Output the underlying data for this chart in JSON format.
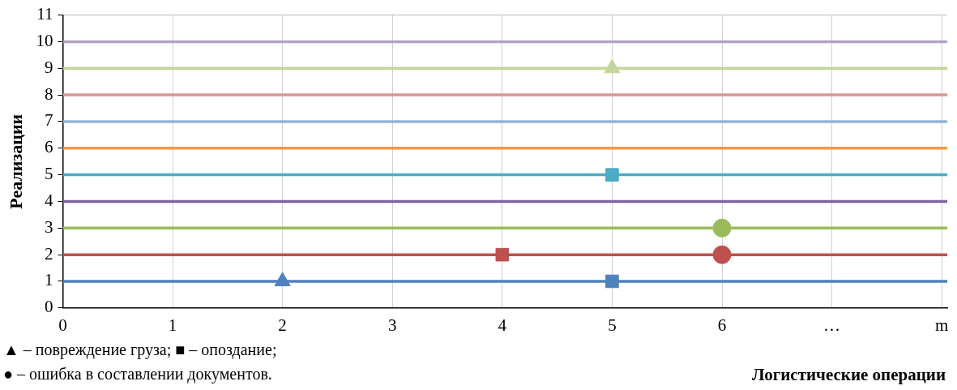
{
  "chart_data": {
    "type": "line",
    "ylabel": "Реализации",
    "xlabel": "Логистические операции",
    "xlim": [
      0,
      8.05
    ],
    "ylim": [
      0,
      11
    ],
    "xticks": [
      0,
      1,
      2,
      3,
      4,
      5,
      6,
      {
        "value": 7,
        "label": "…"
      },
      {
        "value": 8,
        "label": "m"
      }
    ],
    "yticks": [
      0,
      1,
      2,
      3,
      4,
      5,
      6,
      7,
      8,
      9,
      10,
      11
    ],
    "grid": "x",
    "legend": false,
    "marker": "none",
    "line_style": "solid",
    "series": [
      {
        "type": "line",
        "x": [
          0,
          8.05
        ],
        "values": [
          1,
          1
        ],
        "color": "#4f81bd"
      },
      {
        "type": "line",
        "x": [
          0,
          8.05
        ],
        "values": [
          2,
          2
        ],
        "color": "#c0504d"
      },
      {
        "type": "line",
        "x": [
          0,
          8.05
        ],
        "values": [
          3,
          3
        ],
        "color": "#9bbb59"
      },
      {
        "type": "line",
        "x": [
          0,
          8.05
        ],
        "values": [
          4,
          4
        ],
        "color": "#8064a2"
      },
      {
        "type": "line",
        "x": [
          0,
          8.05
        ],
        "values": [
          5,
          5
        ],
        "color": "#4bacc6"
      },
      {
        "type": "line",
        "x": [
          0,
          8.05
        ],
        "values": [
          6,
          6
        ],
        "color": "#f79646"
      },
      {
        "type": "line",
        "x": [
          0,
          8.05
        ],
        "values": [
          7,
          7
        ],
        "color": "#95b3d7"
      },
      {
        "type": "line",
        "x": [
          0,
          8.05
        ],
        "values": [
          8,
          8
        ],
        "color": "#d99694"
      },
      {
        "type": "line",
        "x": [
          0,
          8.05
        ],
        "values": [
          9,
          9
        ],
        "color": "#c3d69b"
      },
      {
        "type": "line",
        "x": [
          0,
          8.05
        ],
        "values": [
          10,
          10
        ],
        "color": "#b3a2c7"
      },
      {
        "type": "scatter",
        "marker": "triangle",
        "x": [
          2,
          5
        ],
        "values": [
          1,
          9
        ],
        "colors": [
          "#4f81bd",
          "#c3d69b"
        ]
      },
      {
        "type": "scatter",
        "marker": "square",
        "x": [
          5,
          4,
          5
        ],
        "values": [
          1,
          2,
          5
        ],
        "colors": [
          "#4f81bd",
          "#c0504d",
          "#4bacc6"
        ]
      },
      {
        "type": "scatter",
        "marker": "circle",
        "x": [
          6,
          6
        ],
        "values": [
          2,
          3
        ],
        "colors": [
          "#c0504d",
          "#9bbb59"
        ]
      }
    ],
    "annotations": [
      "▲ – повреждение груза; ■ – опоздание;",
      "● – ошибка в составлении документов."
    ]
  }
}
